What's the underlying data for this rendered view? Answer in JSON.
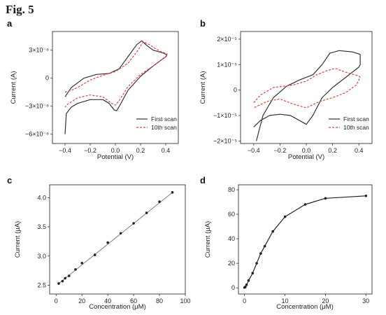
{
  "figure": {
    "title": "Fig. 5"
  },
  "chart_data": [
    {
      "panel": "a",
      "type": "line",
      "xlabel": "Potential (V)",
      "ylabel": "Current (A)",
      "xlim": [
        -0.5,
        0.5
      ],
      "ylim": [
        -7e-06,
        5e-06
      ],
      "xticks": [
        -0.4,
        -0.2,
        0.0,
        0.2,
        0.4
      ],
      "xtick_labels": [
        "−0.4",
        "−0.2",
        "0.0",
        "0.2",
        "0.4"
      ],
      "yticks": [
        -6e-06,
        -3e-06,
        0,
        3e-06
      ],
      "ytick_labels": [
        "−6×10⁻⁶",
        "−3×10⁻⁶",
        "0",
        "3×10⁻⁶"
      ],
      "legend_position": "bottom-right",
      "series": [
        {
          "name": "First scan",
          "color": "#333333",
          "style": "solid",
          "points": [
            [
              -0.4,
              -6e-06
            ],
            [
              -0.39,
              -3.8e-06
            ],
            [
              -0.35,
              -3.1e-06
            ],
            [
              -0.3,
              -2.7e-06
            ],
            [
              -0.2,
              -2.3e-06
            ],
            [
              -0.1,
              -2.3e-06
            ],
            [
              -0.05,
              -2.7e-06
            ],
            [
              -0.01,
              -3.4e-06
            ],
            [
              0.01,
              -3.5e-06
            ],
            [
              0.04,
              -2.8e-06
            ],
            [
              0.1,
              -1.3e-06
            ],
            [
              0.2,
              2e-07
            ],
            [
              0.3,
              1.3e-06
            ],
            [
              0.4,
              2.3e-06
            ],
            [
              0.41,
              2.5e-06
            ],
            [
              0.38,
              2.7e-06
            ],
            [
              0.3,
              3e-06
            ],
            [
              0.25,
              3.5e-06
            ],
            [
              0.21,
              4e-06
            ],
            [
              0.17,
              3.6e-06
            ],
            [
              0.1,
              2.3e-06
            ],
            [
              0.03,
              1e-06
            ],
            [
              -0.05,
              5e-07
            ],
            [
              -0.15,
              4e-07
            ],
            [
              -0.25,
              0.0
            ],
            [
              -0.35,
              -1e-06
            ],
            [
              -0.4,
              -2e-06
            ]
          ]
        },
        {
          "name": "10th scan",
          "color": "#e8413c",
          "style": "dashed",
          "points": [
            [
              -0.4,
              -1.5e-06
            ],
            [
              -0.35,
              -1.3e-06
            ],
            [
              -0.3,
              -1e-06
            ],
            [
              -0.2,
              -2e-07
            ],
            [
              -0.1,
              3e-07
            ],
            [
              0.0,
              7e-07
            ],
            [
              0.1,
              1.6e-06
            ],
            [
              0.18,
              3e-06
            ],
            [
              0.22,
              3.9e-06
            ],
            [
              0.27,
              3.6e-06
            ],
            [
              0.35,
              2.9e-06
            ],
            [
              0.41,
              2.6e-06
            ],
            [
              0.4,
              2.3e-06
            ],
            [
              0.3,
              1.3e-06
            ],
            [
              0.2,
              4e-07
            ],
            [
              0.1,
              -9e-07
            ],
            [
              0.03,
              -2.4e-06
            ],
            [
              0.0,
              -2.9e-06
            ],
            [
              -0.03,
              -2.7e-06
            ],
            [
              -0.1,
              -2e-06
            ],
            [
              -0.2,
              -1.8e-06
            ],
            [
              -0.3,
              -2.1e-06
            ],
            [
              -0.38,
              -2.8e-06
            ],
            [
              -0.4,
              -3.1e-06
            ]
          ]
        }
      ]
    },
    {
      "panel": "b",
      "type": "line",
      "xlabel": "Potential (V)",
      "ylabel": "Current (A)",
      "xlim": [
        -0.5,
        0.5
      ],
      "ylim": [
        -2.1e-05,
        2.3e-05
      ],
      "xticks": [
        -0.4,
        -0.2,
        0.0,
        0.2,
        0.4
      ],
      "xtick_labels": [
        "−0.4",
        "−0.2",
        "0.0",
        "0.2",
        "0.4"
      ],
      "yticks": [
        -2e-05,
        -1e-05,
        0,
        1e-05,
        2e-05
      ],
      "ytick_labels": [
        "−2×10⁻⁵",
        "−1×10⁻⁵",
        "0",
        "1×10⁻⁵",
        "2×10⁻⁵"
      ],
      "legend_position": "bottom-right",
      "series": [
        {
          "name": "First scan",
          "color": "#333333",
          "style": "solid",
          "points": [
            [
              -0.4,
              -1.45e-05
            ],
            [
              -0.35,
              -1.2e-05
            ],
            [
              -0.28,
              -1e-05
            ],
            [
              -0.2,
              -9.5e-06
            ],
            [
              -0.12,
              -1e-05
            ],
            [
              -0.05,
              -1.2e-05
            ],
            [
              0.0,
              -1.35e-05
            ],
            [
              0.05,
              -1e-05
            ],
            [
              0.12,
              -3e-06
            ],
            [
              0.2,
              1e-06
            ],
            [
              0.3,
              5e-06
            ],
            [
              0.4,
              9e-06
            ],
            [
              0.41,
              1e-05
            ],
            [
              0.41,
              1.4e-05
            ],
            [
              0.35,
              1.5e-05
            ],
            [
              0.25,
              1.55e-05
            ],
            [
              0.18,
              1.45e-05
            ],
            [
              0.12,
              1e-05
            ],
            [
              0.05,
              6e-06
            ],
            [
              -0.05,
              4e-06
            ],
            [
              -0.15,
              1.5e-06
            ],
            [
              -0.25,
              -3e-06
            ],
            [
              -0.33,
              -1e-05
            ],
            [
              -0.38,
              -2e-05
            ]
          ]
        },
        {
          "name": "10th scan",
          "color": "#e8413c",
          "style": "dashed",
          "points": [
            [
              -0.4,
              -5e-06
            ],
            [
              -0.35,
              -2e-06
            ],
            [
              -0.25,
              1e-06
            ],
            [
              -0.1,
              2e-06
            ],
            [
              0.0,
              3.5e-06
            ],
            [
              0.08,
              6e-06
            ],
            [
              0.15,
              7.5e-06
            ],
            [
              0.22,
              8.5e-06
            ],
            [
              0.3,
              7e-06
            ],
            [
              0.4,
              5.5e-06
            ],
            [
              0.41,
              5e-06
            ],
            [
              0.38,
              2e-06
            ],
            [
              0.3,
              -1e-06
            ],
            [
              0.2,
              -3e-06
            ],
            [
              0.1,
              -4.5e-06
            ],
            [
              0.0,
              -7e-06
            ],
            [
              -0.1,
              -5.5e-06
            ],
            [
              -0.2,
              -3.5e-06
            ],
            [
              -0.3,
              -4.5e-06
            ],
            [
              -0.4,
              -7e-06
            ]
          ]
        }
      ]
    },
    {
      "panel": "c",
      "type": "scatter",
      "xlabel": "Concentration (μM)",
      "ylabel": "Current (μA)",
      "xlim": [
        -5,
        100
      ],
      "ylim": [
        2.35,
        4.22
      ],
      "xticks": [
        0,
        20,
        40,
        60,
        80,
        100
      ],
      "xtick_labels": [
        "0",
        "20",
        "40",
        "60",
        "80",
        "100"
      ],
      "yticks": [
        2.5,
        3.0,
        3.5,
        4.0
      ],
      "ytick_labels": [
        "2.5",
        "3.0",
        "3.5",
        "4.0"
      ],
      "fit_line": [
        [
          2,
          2.53
        ],
        [
          90,
          4.09
        ]
      ],
      "series": [
        {
          "color": "#222222",
          "points": [
            [
              2,
              2.53
            ],
            [
              5,
              2.57
            ],
            [
              7,
              2.62
            ],
            [
              10,
              2.66
            ],
            [
              15,
              2.77
            ],
            [
              20,
              2.88
            ],
            [
              30,
              3.02
            ],
            [
              40,
              3.23
            ],
            [
              50,
              3.39
            ],
            [
              60,
              3.56
            ],
            [
              70,
              3.74
            ],
            [
              80,
              3.93
            ],
            [
              90,
              4.09
            ]
          ]
        }
      ]
    },
    {
      "panel": "d",
      "type": "line",
      "xlabel": "Concentration (μM)",
      "ylabel": "Current (μA)",
      "xlim": [
        -1.5,
        31.5
      ],
      "ylim": [
        -5,
        84
      ],
      "xticks": [
        0,
        10,
        20,
        30
      ],
      "xtick_labels": [
        "0",
        "10",
        "20",
        "30"
      ],
      "yticks": [
        0,
        20,
        40,
        60,
        80
      ],
      "ytick_labels": [
        "0",
        "20",
        "40",
        "60",
        "80"
      ],
      "series": [
        {
          "color": "#222222",
          "points": [
            [
              0,
              0.3
            ],
            [
              0.2,
              0.8
            ],
            [
              0.5,
              2.5
            ],
            [
              1,
              6
            ],
            [
              2,
              12
            ],
            [
              3,
              20
            ],
            [
              4,
              28
            ],
            [
              5,
              34
            ],
            [
              7,
              46
            ],
            [
              10,
              58
            ],
            [
              15,
              68
            ],
            [
              20,
              73
            ],
            [
              30,
              75
            ]
          ]
        }
      ]
    }
  ]
}
